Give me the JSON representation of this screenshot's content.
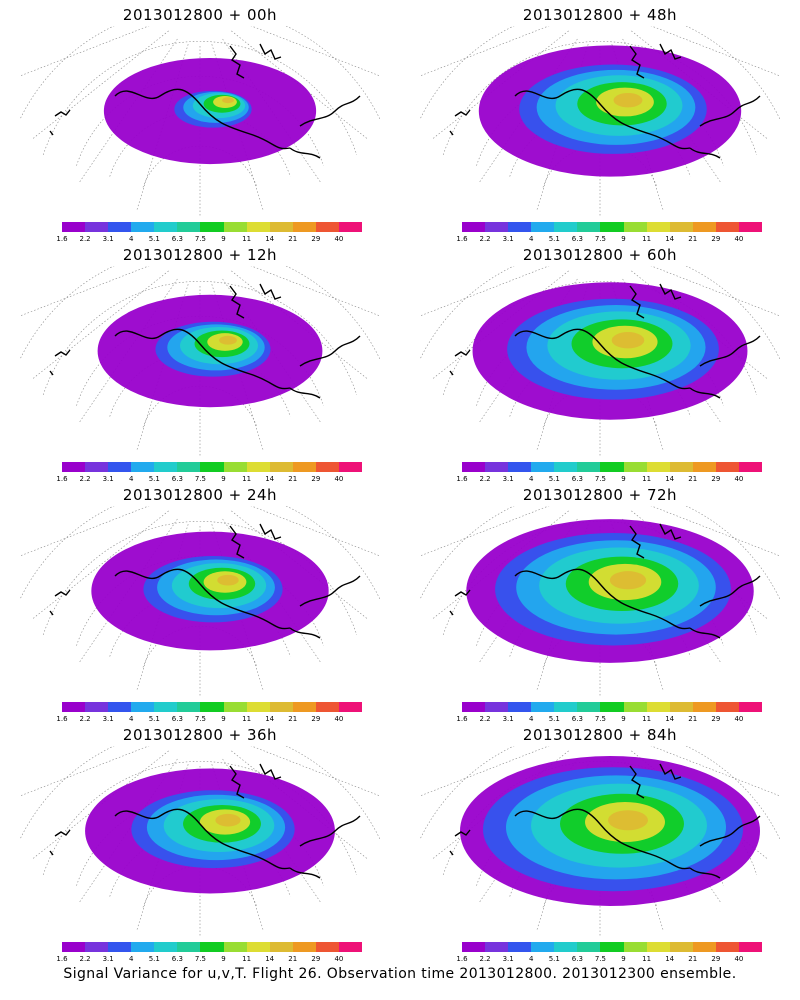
{
  "footer": "Signal Variance for u,v,T. Flight 26. Observation time 2013012800. 2013012300 ensemble.",
  "colorbar": {
    "ticks": [
      "1.6",
      "2.2",
      "3.1",
      "4",
      "5.1",
      "6.3",
      "7.5",
      "9",
      "11",
      "14",
      "21",
      "29",
      "40"
    ],
    "colors": [
      "#9900cc",
      "#7733dd",
      "#3355ee",
      "#22aaee",
      "#22cccc",
      "#22cc99",
      "#11cc22",
      "#99dd33",
      "#dddd33",
      "#ddbb33",
      "#ee9922",
      "#ee5533",
      "#ee1177"
    ]
  },
  "panels": [
    {
      "title": "2013012800 + 00h",
      "lead": 0
    },
    {
      "title": "2013012800 + 48h",
      "lead": 48
    },
    {
      "title": "2013012800 + 12h",
      "lead": 12
    },
    {
      "title": "2013012800 + 60h",
      "lead": 60
    },
    {
      "title": "2013012800 + 24h",
      "lead": 24
    },
    {
      "title": "2013012800 + 72h",
      "lead": 72
    },
    {
      "title": "2013012800 + 36h",
      "lead": 36
    },
    {
      "title": "2013012800 + 84h",
      "lead": 84
    }
  ]
}
